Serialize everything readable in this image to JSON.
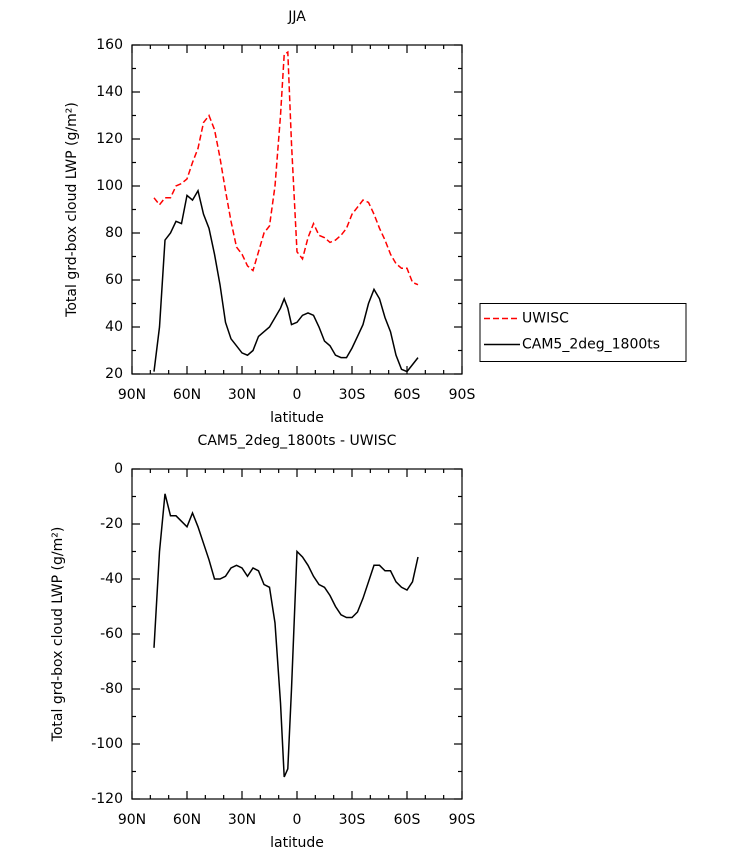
{
  "chart_data": [
    {
      "type": "line",
      "title": "JJA",
      "xlabel": "latitude",
      "ylabel": "Total grd-box cloud LWP (g/m²)",
      "x": [
        78,
        75,
        72,
        69,
        66,
        63,
        60,
        57,
        54,
        51,
        48,
        45,
        42,
        39,
        36,
        33,
        30,
        27,
        24,
        21,
        18,
        15,
        12,
        9,
        7,
        5,
        3,
        0,
        -3,
        -6,
        -9,
        -12,
        -15,
        -18,
        -21,
        -24,
        -27,
        -30,
        -33,
        -36,
        -39,
        -42,
        -45,
        -48,
        -51,
        -54,
        -57,
        -60,
        -63,
        -66
      ],
      "series": [
        {
          "name": "UWISC",
          "color": "#ff0000",
          "dash": true,
          "values": [
            95,
            92,
            95,
            95,
            100,
            101,
            103,
            110,
            116,
            127,
            130,
            124,
            112,
            98,
            85,
            74,
            71,
            66,
            64,
            72,
            80,
            83,
            100,
            130,
            156,
            157,
            118,
            72,
            69,
            78,
            84,
            79,
            78,
            76,
            77,
            79,
            82,
            88,
            91,
            94,
            93,
            88,
            82,
            77,
            71,
            67,
            65,
            65,
            59,
            58
          ]
        },
        {
          "name": "CAM5_2deg_1800ts",
          "color": "#000000",
          "dash": false,
          "values": [
            21,
            40,
            77,
            80,
            85,
            84,
            96,
            94,
            98,
            88,
            82,
            71,
            58,
            42,
            35,
            32,
            29,
            28,
            30,
            36,
            38,
            40,
            44,
            48,
            52,
            48,
            41,
            42,
            45,
            46,
            45,
            40,
            34,
            32,
            28,
            27,
            27,
            31,
            36,
            41,
            50,
            56,
            52,
            44,
            38,
            28,
            22,
            21,
            24,
            27
          ]
        }
      ],
      "xlim": [
        90,
        -90
      ],
      "ylim": [
        20,
        160
      ],
      "xticks": [
        {
          "value": 90,
          "label": "90N"
        },
        {
          "value": 60,
          "label": "60N"
        },
        {
          "value": 30,
          "label": "30N"
        },
        0,
        {
          "value": -30,
          "label": "30S"
        },
        {
          "value": -60,
          "label": "60S"
        },
        {
          "value": -90,
          "label": "90S"
        }
      ],
      "yticks": [
        20,
        40,
        60,
        80,
        100,
        120,
        140,
        160
      ],
      "legend": "right"
    },
    {
      "type": "line",
      "title": "CAM5_2deg_1800ts - UWISC",
      "xlabel": "latitude",
      "ylabel": "Total grd-box cloud LWP (g/m²)",
      "x": [
        78,
        75,
        72,
        69,
        66,
        63,
        60,
        57,
        54,
        51,
        48,
        45,
        42,
        39,
        36,
        33,
        30,
        27,
        24,
        21,
        18,
        15,
        12,
        9,
        7,
        5,
        3,
        0,
        -3,
        -6,
        -9,
        -12,
        -15,
        -18,
        -21,
        -24,
        -27,
        -30,
        -33,
        -36,
        -39,
        -42,
        -45,
        -48,
        -51,
        -54,
        -57,
        -60,
        -63,
        -66
      ],
      "series": [
        {
          "color": "#000000",
          "dash": false,
          "values": [
            -65,
            -30,
            -9,
            -17,
            -17,
            -19,
            -21,
            -16,
            -21,
            -27,
            -33,
            -40,
            -40,
            -39,
            -36,
            -35,
            -36,
            -39,
            -36,
            -37,
            -42,
            -43,
            -56,
            -85,
            -112,
            -109,
            -80,
            -30,
            -32,
            -35,
            -39,
            -42,
            -43,
            -46,
            -50,
            -53,
            -54,
            -54,
            -52,
            -47,
            -41,
            -35,
            -35,
            -37,
            -37,
            -41,
            -43,
            -44,
            -41,
            -32
          ]
        }
      ],
      "xlim": [
        90,
        -90
      ],
      "ylim": [
        -120,
        0
      ],
      "xticks": [
        {
          "value": 90,
          "label": "90N"
        },
        {
          "value": 60,
          "label": "60N"
        },
        {
          "value": 30,
          "label": "30N"
        },
        0,
        {
          "value": -30,
          "label": "30S"
        },
        {
          "value": -60,
          "label": "60S"
        },
        {
          "value": -90,
          "label": "90S"
        }
      ],
      "yticks": [
        -120,
        -100,
        -80,
        -60,
        -40,
        -20,
        0
      ]
    }
  ]
}
